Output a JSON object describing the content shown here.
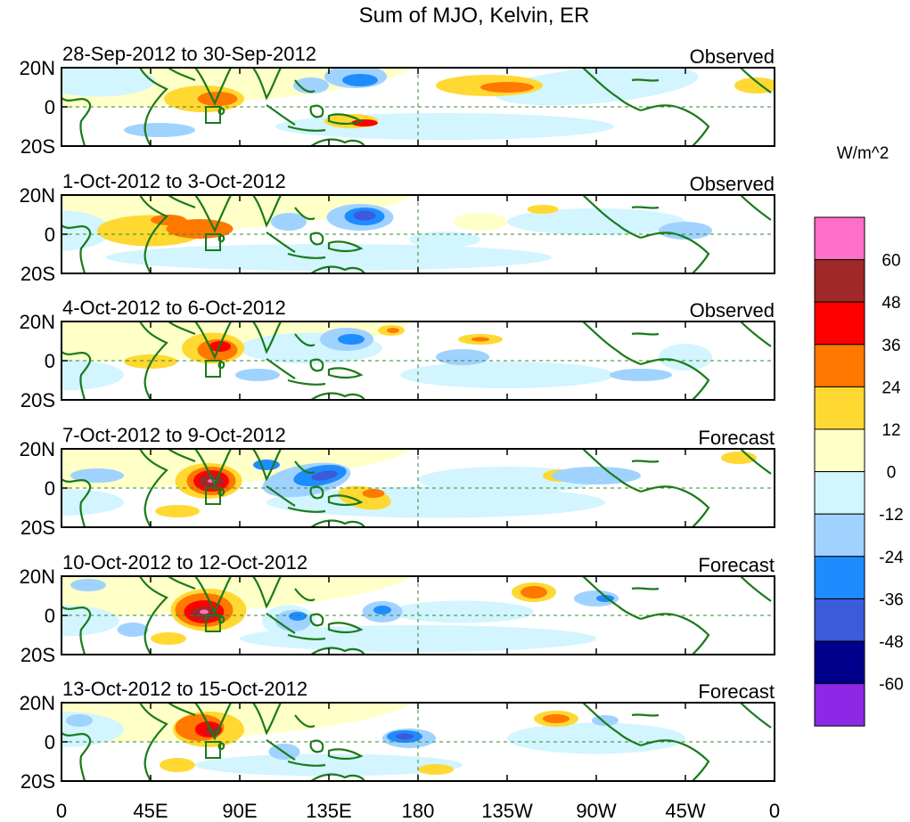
{
  "figure": {
    "title": "Sum of MJO, Kelvin, ER",
    "units": "W/m^2"
  },
  "panels": [
    {
      "date_range": "28-Sep-2012 to 30-Sep-2012",
      "status": "Observed"
    },
    {
      "date_range": "1-Oct-2012 to 3-Oct-2012",
      "status": "Observed"
    },
    {
      "date_range": "4-Oct-2012 to 6-Oct-2012",
      "status": "Observed"
    },
    {
      "date_range": "7-Oct-2012 to 9-Oct-2012",
      "status": "Forecast"
    },
    {
      "date_range": "10-Oct-2012 to 12-Oct-2012",
      "status": "Forecast"
    },
    {
      "date_range": "13-Oct-2012 to 15-Oct-2012",
      "status": "Forecast"
    }
  ],
  "axes": {
    "lat_labels": [
      "20N",
      "0",
      "20S"
    ],
    "lon_labels": [
      "0",
      "45E",
      "90E",
      "135E",
      "180",
      "135W",
      "90W",
      "45W",
      "0"
    ]
  },
  "colorbar": {
    "tick_labels": [
      "60",
      "48",
      "36",
      "24",
      "12",
      "0",
      "-12",
      "-24",
      "-36",
      "-48",
      "-60"
    ],
    "colors": [
      "#ff6ec7",
      "#a02828",
      "#ff0000",
      "#ff7800",
      "#ffd832",
      "#ffffc8",
      "#d2f5ff",
      "#a0d2ff",
      "#1e8cff",
      "#3c5adc",
      "#00008c",
      "#8c28e6"
    ]
  },
  "chart_data": {
    "type": "heatmap",
    "title": "Sum of MJO, Kelvin, ER",
    "units": "W/m^2",
    "x_range": [
      "0",
      "0"
    ],
    "y_range": [
      "20S",
      "20N"
    ],
    "contour_levels": [
      -60,
      -48,
      -36,
      -24,
      -12,
      0,
      12,
      24,
      36,
      48,
      60
    ]
  }
}
